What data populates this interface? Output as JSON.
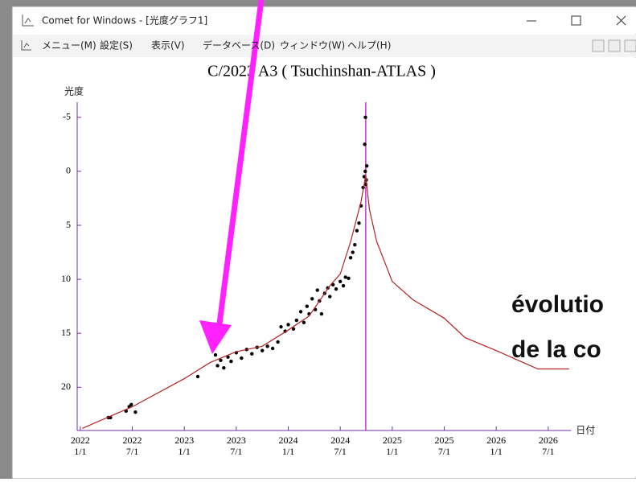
{
  "window": {
    "title": "Comet for Windows - [光度グラフ1]",
    "menu": [
      "メニュー(M)",
      "設定(S)",
      "表示(V)",
      "データベース(D)",
      "ウィンドウ(W)",
      "ヘルプ(H)"
    ]
  },
  "chart_data": {
    "type": "scatter",
    "title": "C/2023 A3 ( Tsuchinshan-ATLAS )",
    "y_label": "光度",
    "x_label": "日付",
    "xlim": [
      2021.97,
      2026.72
    ],
    "ylim": [
      24,
      -6.4
    ],
    "inverted_y": true,
    "yticks": [
      -5,
      0,
      5,
      10,
      15,
      20
    ],
    "xticks": [
      {
        "value": 2022,
        "label": [
          "2022",
          "1/1"
        ]
      },
      {
        "value": 2022.5,
        "label": [
          "2022",
          "7/1"
        ]
      },
      {
        "value": 2023,
        "label": [
          "2023",
          "1/1"
        ]
      },
      {
        "value": 2023.5,
        "label": [
          "2023",
          "7/1"
        ]
      },
      {
        "value": 2024,
        "label": [
          "2024",
          "1/1"
        ]
      },
      {
        "value": 2024.5,
        "label": [
          "2024",
          "7/1"
        ]
      },
      {
        "value": 2025,
        "label": [
          "2025",
          "1/1"
        ]
      },
      {
        "value": 2025.5,
        "label": [
          "2025",
          "7/1"
        ]
      },
      {
        "value": 2026,
        "label": [
          "2026",
          "1/1"
        ]
      },
      {
        "value": 2026.5,
        "label": [
          "2026",
          "7/1"
        ]
      }
    ],
    "marker_x": 2024.745,
    "marker_color": "#cc33cc",
    "series": [
      {
        "type": "scatter",
        "color": "#000000",
        "x": [
          2022.27,
          2022.29,
          2022.44,
          2022.47,
          2022.49,
          2022.53,
          2023.13,
          2023.3,
          2023.32,
          2023.35,
          2023.38,
          2023.42,
          2023.45,
          2023.5,
          2023.55,
          2023.6,
          2023.65,
          2023.7,
          2023.75,
          2023.8,
          2023.85,
          2023.9,
          2023.93,
          2023.97,
          2024.0,
          2024.05,
          2024.08,
          2024.12,
          2024.15,
          2024.18,
          2024.2,
          2024.23,
          2024.26,
          2024.28,
          2024.3,
          2024.32,
          2024.35,
          2024.38,
          2024.4,
          2024.43,
          2024.46,
          2024.5,
          2024.53,
          2024.55,
          2024.58,
          2024.6,
          2024.62,
          2024.64,
          2024.66,
          2024.68,
          2024.7,
          2024.72,
          2024.73,
          2024.735,
          2024.74,
          2024.742,
          2024.745,
          2024.75,
          2024.755
        ],
        "values": [
          22.8,
          22.8,
          22.2,
          21.8,
          21.6,
          22.3,
          19.0,
          17.0,
          18.0,
          17.5,
          18.2,
          17.2,
          17.6,
          16.8,
          17.3,
          16.5,
          16.9,
          16.3,
          16.6,
          16.2,
          16.4,
          15.8,
          14.4,
          14.8,
          14.2,
          14.6,
          13.8,
          13.0,
          14.0,
          12.5,
          13.2,
          11.8,
          12.8,
          11.0,
          12.0,
          13.2,
          11.3,
          10.8,
          11.6,
          10.5,
          10.9,
          10.2,
          10.6,
          9.8,
          9.9,
          8.0,
          7.5,
          6.8,
          5.5,
          4.8,
          3.2,
          1.5,
          0.5,
          -2.5,
          0.0,
          -5.0,
          1.2,
          0.8,
          -0.5
        ]
      },
      {
        "type": "line",
        "color": "#b22222",
        "x": [
          2022.02,
          2022.5,
          2023.0,
          2023.25,
          2023.5,
          2023.75,
          2024.0,
          2024.2,
          2024.4,
          2024.5,
          2024.6,
          2024.7,
          2024.745,
          2024.78,
          2024.85,
          2025.0,
          2025.2,
          2025.5,
          2025.7,
          2026.0,
          2026.4,
          2026.7
        ],
        "values": [
          23.8,
          21.8,
          19.2,
          17.7,
          16.7,
          16.2,
          14.7,
          13.4,
          10.6,
          9.5,
          6.5,
          2.8,
          0.4,
          3.5,
          6.5,
          10.2,
          11.9,
          13.6,
          15.4,
          16.6,
          18.3,
          18.3
        ]
      }
    ],
    "annotation": [
      "évolutio",
      "de la co"
    ]
  }
}
